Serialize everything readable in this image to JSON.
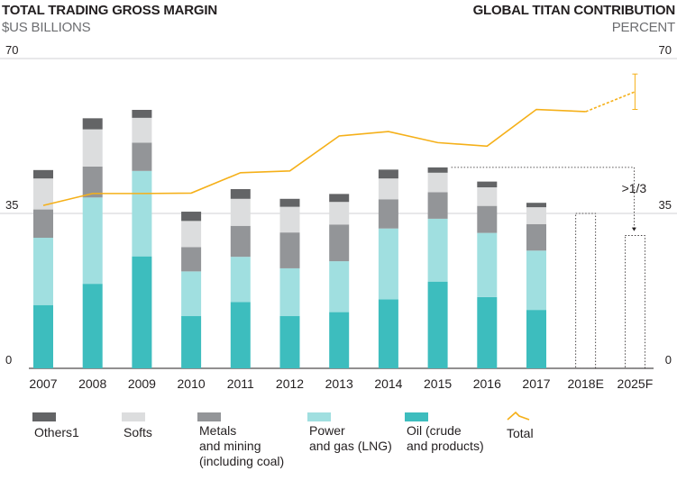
{
  "header": {
    "left_title": "TOTAL TRADING GROSS MARGIN",
    "left_subtitle": "$US BILLIONS",
    "right_title": "GLOBAL TITAN CONTRIBUTION",
    "right_subtitle": "PERCENT"
  },
  "chart_data": {
    "type": "bar",
    "stacked": true,
    "categories": [
      "2007",
      "2008",
      "2009",
      "2010",
      "2011",
      "2012",
      "2013",
      "2014",
      "2015",
      "2016",
      "2017",
      "2018E",
      "2025F"
    ],
    "left_axis": {
      "label": "$US BILLIONS",
      "range": [
        0,
        70
      ],
      "ticks": [
        "0",
        "35",
        "70"
      ],
      "tick_values": [
        0,
        35,
        70
      ]
    },
    "right_axis": {
      "label": "PERCENT",
      "range": [
        0,
        70
      ],
      "ticks": [
        "0",
        "35",
        "70"
      ],
      "tick_values": [
        0,
        35,
        70
      ]
    },
    "series": [
      {
        "name": "Oil (crude\nand products)",
        "color": "#3dbdbe",
        "values": [
          14.3,
          19.1,
          25.3,
          11.8,
          15.0,
          11.8,
          12.7,
          15.6,
          19.6,
          16.1,
          13.2,
          null,
          null
        ]
      },
      {
        "name": "Power\nand gas (LNG)",
        "color": "#a0dfe0",
        "values": [
          15.2,
          19.5,
          19.3,
          10.1,
          10.2,
          10.8,
          11.5,
          16.0,
          14.2,
          14.5,
          13.4,
          null,
          null
        ]
      },
      {
        "name": "Metals\nand mining\n(including coal)",
        "color": "#939598",
        "values": [
          6.4,
          7.0,
          6.4,
          5.5,
          7.0,
          8.1,
          8.3,
          6.6,
          6.0,
          6.1,
          6.0,
          null,
          null
        ]
      },
      {
        "name": "Softs",
        "color": "#dcddde",
        "values": [
          7.0,
          8.4,
          5.6,
          5.9,
          6.1,
          5.8,
          5.1,
          4.7,
          4.4,
          4.2,
          3.8,
          null,
          null
        ]
      },
      {
        "name": "Others1",
        "color": "#636466",
        "values": [
          1.9,
          2.5,
          1.8,
          2.1,
          2.2,
          1.8,
          1.8,
          2.0,
          1.2,
          1.3,
          1.0,
          null,
          null
        ]
      }
    ],
    "projections": [
      {
        "category": "2018E",
        "value": 35,
        "style": "dotted outline"
      },
      {
        "category": "2025F",
        "value": 30,
        "style": "dotted outline"
      }
    ],
    "line_series": {
      "name": "Total",
      "axis": "right",
      "color": "#f5b019",
      "values": [
        36.8,
        39.5,
        39.5,
        39.6,
        44.2,
        44.6,
        52.5,
        53.5,
        51.0,
        50.2,
        58.5,
        58.0,
        62.5
      ],
      "range_2025F": [
        58.5,
        66.5
      ]
    },
    "annotation": {
      "text": ">1/3",
      "from": "2015",
      "to": "2025F"
    },
    "legend": [
      "Others1",
      "Softs",
      "Metals\nand mining\n(including coal)",
      "Power\nand gas (LNG)",
      "Oil (crude\nand products)",
      "Total"
    ],
    "legend_position": "bottom"
  }
}
